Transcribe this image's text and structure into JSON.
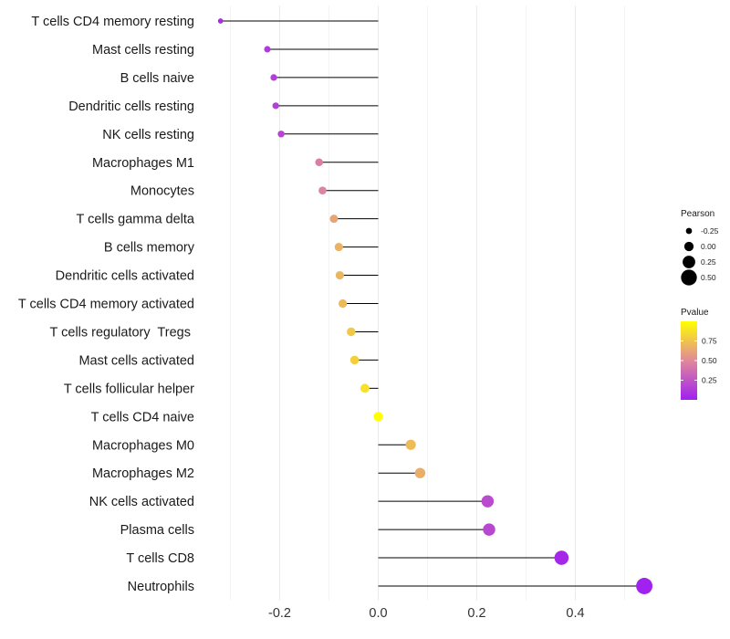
{
  "chart_data": {
    "type": "lollipop",
    "xlabel": "",
    "ylabel": "",
    "xlim": [
      -0.32,
      0.56
    ],
    "x_ticks": [
      -0.2,
      0.0,
      0.2,
      0.4
    ],
    "x_tick_labels": [
      "-0.2",
      "0.0",
      "0.2",
      "0.4"
    ],
    "categories": [
      "T cells CD4 memory resting",
      "Mast cells resting",
      "B cells naive",
      "Dendritic cells resting",
      "NK cells resting",
      "Macrophages M1",
      "Monocytes",
      "T cells gamma delta",
      "B cells memory",
      "Dendritic cells activated",
      "T cells CD4 memory activated",
      "T cells regulatory  Tregs ",
      "Mast cells activated",
      "T cells follicular helper",
      "T cells CD4 naive",
      "Macrophages M0",
      "Macrophages M2",
      "NK cells activated",
      "Plasma cells",
      "T cells CD8",
      "Neutrophils"
    ],
    "pearson": [
      -0.32,
      -0.225,
      -0.212,
      -0.208,
      -0.197,
      -0.12,
      -0.113,
      -0.09,
      -0.08,
      -0.078,
      -0.072,
      -0.055,
      -0.048,
      -0.027,
      0.0,
      0.066,
      0.085,
      0.222,
      0.225,
      0.372,
      0.54
    ],
    "pvalue": [
      0.06,
      0.13,
      0.15,
      0.16,
      0.18,
      0.45,
      0.48,
      0.62,
      0.68,
      0.69,
      0.71,
      0.77,
      0.8,
      0.88,
      1.0,
      0.72,
      0.66,
      0.2,
      0.19,
      0.04,
      0.01
    ],
    "legend": {
      "size_title": "Pearson",
      "size_entries": [
        {
          "label": "-0.25",
          "value": -0.25
        },
        {
          "label": "0.00",
          "value": 0.0
        },
        {
          "label": "0.25",
          "value": 0.25
        },
        {
          "label": "0.50",
          "value": 0.5
        }
      ],
      "color_title": "Pvalue",
      "color_ticks": [
        {
          "label": "0.75",
          "value": 0.75
        },
        {
          "label": "0.50",
          "value": 0.5
        },
        {
          "label": "0.25",
          "value": 0.25
        }
      ],
      "color_range": [
        0.0,
        1.0
      ],
      "position": "right"
    },
    "colors": {
      "low": "#a020f0",
      "mid": "#e0889b",
      "high": "#ffff00",
      "line": "#000000",
      "grid": "#ebebeb"
    }
  }
}
